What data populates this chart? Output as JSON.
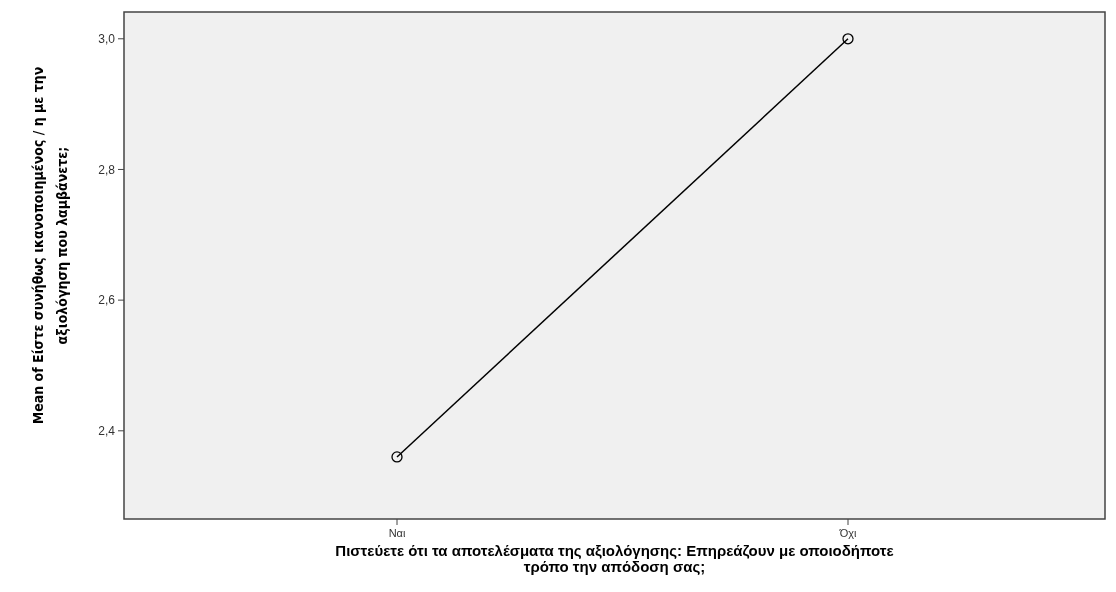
{
  "chart_data": {
    "type": "line",
    "xlabel": "Πιστεύετε ότι τα αποτελέσματα της αξιολόγησης: Επηρεάζουν με οποιοδήποτε τρόπο την απόδοση σας;",
    "ylabel": "Mean of Είστε συνήθως ικανοποιημένος / η με την αξιολόγηση που λαμβάνετε;",
    "categories": [
      "Ναι",
      "Όχι"
    ],
    "series": [
      {
        "color": "#000000",
        "values": [
          2.36,
          3.0
        ]
      }
    ],
    "ylim": [
      2.265,
      3.041
    ],
    "yticks": [
      {
        "value": 2.4,
        "label": "2,4"
      },
      {
        "value": 2.6,
        "label": "2,6"
      },
      {
        "value": 2.8,
        "label": "2,8"
      },
      {
        "value": 3.0,
        "label": "3,0"
      }
    ],
    "marker": "circle",
    "grid": false
  }
}
